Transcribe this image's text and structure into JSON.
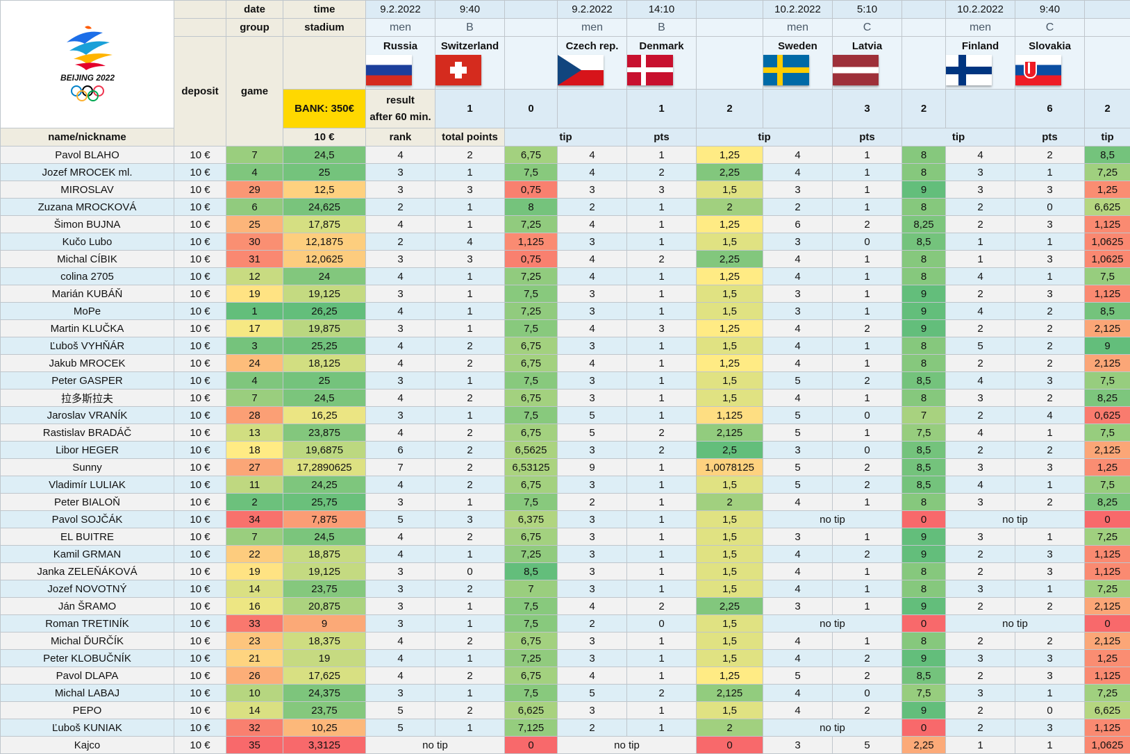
{
  "logo_text": "BEIJING 2022",
  "bank_label": "BANK: 350€",
  "labels": {
    "date": "date",
    "time": "time",
    "group": "group",
    "stadium": "stadium",
    "deposit": "deposit",
    "game": "game",
    "result_line1": "result",
    "result_line2": "after 60 min.",
    "name": "name/nickname",
    "deposit_value": "10 €",
    "rank": "rank",
    "total": "total points",
    "tip": "tip",
    "pts": "pts"
  },
  "games": [
    {
      "date": "9.2.2022",
      "time": "9:40",
      "group": "men",
      "stadium": "B",
      "home": "Russia",
      "away": "Switzerland",
      "home_flag": "russia-flag",
      "away_flag": "switzerland-flag",
      "home_score": "1",
      "away_score": "0"
    },
    {
      "date": "9.2.2022",
      "time": "14:10",
      "group": "men",
      "stadium": "B",
      "home": "Czech rep.",
      "away": "Denmark",
      "home_flag": "czech-flag",
      "away_flag": "denmark-flag",
      "home_score": "1",
      "away_score": "2"
    },
    {
      "date": "10.2.2022",
      "time": "5:10",
      "group": "men",
      "stadium": "C",
      "home": "Sweden",
      "away": "Latvia",
      "home_flag": "sweden-flag",
      "away_flag": "latvia-flag",
      "home_score": "3",
      "away_score": "2"
    },
    {
      "date": "10.2.2022",
      "time": "9:40",
      "group": "men",
      "stadium": "C",
      "home": "Finland",
      "away": "Slovakia",
      "home_flag": "finland-flag",
      "away_flag": "slovakia-flag",
      "home_score": "6",
      "away_score": "2"
    }
  ],
  "colors": {
    "bank": "#ffd800",
    "header_label": "#efece0",
    "header_blue": "#dcebf5",
    "row_odd": "#f2f2f2",
    "row_even": "#ddeef6",
    "best": "#63be7b",
    "mid": "#ffeb84",
    "worst": "#f8696b"
  },
  "players": [
    {
      "name": "Pavol BLAHO",
      "deposit": "10 €",
      "rank": "7",
      "total": "24,5",
      "g": [
        [
          "4",
          "2",
          "6,75"
        ],
        [
          "4",
          "1",
          "1,25"
        ],
        [
          "4",
          "1",
          "8"
        ],
        [
          "4",
          "2",
          "8,5"
        ]
      ]
    },
    {
      "name": "Jozef MROCEK ml.",
      "deposit": "10 €",
      "rank": "4",
      "total": "25",
      "g": [
        [
          "3",
          "1",
          "7,5"
        ],
        [
          "4",
          "2",
          "2,25"
        ],
        [
          "4",
          "1",
          "8"
        ],
        [
          "3",
          "1",
          "7,25"
        ]
      ]
    },
    {
      "name": "MIROSLAV",
      "deposit": "10 €",
      "rank": "29",
      "total": "12,5",
      "g": [
        [
          "3",
          "3",
          "0,75"
        ],
        [
          "3",
          "3",
          "1,5"
        ],
        [
          "3",
          "1",
          "9"
        ],
        [
          "3",
          "3",
          "1,25"
        ]
      ]
    },
    {
      "name": "Zuzana MROCKOVÁ",
      "deposit": "10 €",
      "rank": "6",
      "total": "24,625",
      "g": [
        [
          "2",
          "1",
          "8"
        ],
        [
          "2",
          "1",
          "2"
        ],
        [
          "2",
          "1",
          "8"
        ],
        [
          "2",
          "0",
          "6,625"
        ]
      ]
    },
    {
      "name": "Šimon BUJNA",
      "deposit": "10 €",
      "rank": "25",
      "total": "17,875",
      "g": [
        [
          "4",
          "1",
          "7,25"
        ],
        [
          "4",
          "1",
          "1,25"
        ],
        [
          "6",
          "2",
          "8,25"
        ],
        [
          "2",
          "3",
          "1,125"
        ]
      ]
    },
    {
      "name": "Kučo Lubo",
      "deposit": "10 €",
      "rank": "30",
      "total": "12,1875",
      "g": [
        [
          "2",
          "4",
          "1,125"
        ],
        [
          "3",
          "1",
          "1,5"
        ],
        [
          "3",
          "0",
          "8,5"
        ],
        [
          "1",
          "1",
          "1,0625"
        ]
      ]
    },
    {
      "name": "Michal CÍBIK",
      "deposit": "10 €",
      "rank": "31",
      "total": "12,0625",
      "g": [
        [
          "3",
          "3",
          "0,75"
        ],
        [
          "4",
          "2",
          "2,25"
        ],
        [
          "4",
          "1",
          "8"
        ],
        [
          "1",
          "3",
          "1,0625"
        ]
      ]
    },
    {
      "name": "colina 2705",
      "deposit": "10 €",
      "rank": "12",
      "total": "24",
      "g": [
        [
          "4",
          "1",
          "7,25"
        ],
        [
          "4",
          "1",
          "1,25"
        ],
        [
          "4",
          "1",
          "8"
        ],
        [
          "4",
          "1",
          "7,5"
        ]
      ]
    },
    {
      "name": "Marián KUBÁŇ",
      "deposit": "10 €",
      "rank": "19",
      "total": "19,125",
      "g": [
        [
          "3",
          "1",
          "7,5"
        ],
        [
          "3",
          "1",
          "1,5"
        ],
        [
          "3",
          "1",
          "9"
        ],
        [
          "2",
          "3",
          "1,125"
        ]
      ]
    },
    {
      "name": "MoPe",
      "deposit": "10 €",
      "rank": "1",
      "total": "26,25",
      "g": [
        [
          "4",
          "1",
          "7,25"
        ],
        [
          "3",
          "1",
          "1,5"
        ],
        [
          "3",
          "1",
          "9"
        ],
        [
          "4",
          "2",
          "8,5"
        ]
      ]
    },
    {
      "name": "Martin KLUČKA",
      "deposit": "10 €",
      "rank": "17",
      "total": "19,875",
      "g": [
        [
          "3",
          "1",
          "7,5"
        ],
        [
          "4",
          "3",
          "1,25"
        ],
        [
          "4",
          "2",
          "9"
        ],
        [
          "2",
          "2",
          "2,125"
        ]
      ]
    },
    {
      "name": "Ľuboš VYHŇÁR",
      "deposit": "10 €",
      "rank": "3",
      "total": "25,25",
      "g": [
        [
          "4",
          "2",
          "6,75"
        ],
        [
          "3",
          "1",
          "1,5"
        ],
        [
          "4",
          "1",
          "8"
        ],
        [
          "5",
          "2",
          "9"
        ]
      ]
    },
    {
      "name": "Jakub MROCEK",
      "deposit": "10 €",
      "rank": "24",
      "total": "18,125",
      "g": [
        [
          "4",
          "2",
          "6,75"
        ],
        [
          "4",
          "1",
          "1,25"
        ],
        [
          "4",
          "1",
          "8"
        ],
        [
          "2",
          "2",
          "2,125"
        ]
      ]
    },
    {
      "name": "Peter GASPER",
      "deposit": "10 €",
      "rank": "4",
      "total": "25",
      "g": [
        [
          "3",
          "1",
          "7,5"
        ],
        [
          "3",
          "1",
          "1,5"
        ],
        [
          "5",
          "2",
          "8,5"
        ],
        [
          "4",
          "3",
          "7,5"
        ]
      ]
    },
    {
      "name": "拉多斯拉夫",
      "deposit": "10 €",
      "rank": "7",
      "total": "24,5",
      "g": [
        [
          "4",
          "2",
          "6,75"
        ],
        [
          "3",
          "1",
          "1,5"
        ],
        [
          "4",
          "1",
          "8"
        ],
        [
          "3",
          "2",
          "8,25"
        ]
      ]
    },
    {
      "name": "Jaroslav VRANÍK",
      "deposit": "10 €",
      "rank": "28",
      "total": "16,25",
      "g": [
        [
          "3",
          "1",
          "7,5"
        ],
        [
          "5",
          "1",
          "1,125"
        ],
        [
          "5",
          "0",
          "7"
        ],
        [
          "2",
          "4",
          "0,625"
        ]
      ]
    },
    {
      "name": "Rastislav BRADÁČ",
      "deposit": "10 €",
      "rank": "13",
      "total": "23,875",
      "g": [
        [
          "4",
          "2",
          "6,75"
        ],
        [
          "5",
          "2",
          "2,125"
        ],
        [
          "5",
          "1",
          "7,5"
        ],
        [
          "4",
          "1",
          "7,5"
        ]
      ]
    },
    {
      "name": "Libor HEGER",
      "deposit": "10 €",
      "rank": "18",
      "total": "19,6875",
      "g": [
        [
          "6",
          "2",
          "6,5625"
        ],
        [
          "3",
          "2",
          "2,5"
        ],
        [
          "3",
          "0",
          "8,5"
        ],
        [
          "2",
          "2",
          "2,125"
        ]
      ]
    },
    {
      "name": "Sunny",
      "deposit": "10 €",
      "rank": "27",
      "total": "17,2890625",
      "g": [
        [
          "7",
          "2",
          "6,53125"
        ],
        [
          "9",
          "1",
          "1,0078125"
        ],
        [
          "5",
          "2",
          "8,5"
        ],
        [
          "3",
          "3",
          "1,25"
        ]
      ]
    },
    {
      "name": "Vladimír LULIAK",
      "deposit": "10 €",
      "rank": "11",
      "total": "24,25",
      "g": [
        [
          "4",
          "2",
          "6,75"
        ],
        [
          "3",
          "1",
          "1,5"
        ],
        [
          "5",
          "2",
          "8,5"
        ],
        [
          "4",
          "1",
          "7,5"
        ]
      ]
    },
    {
      "name": "Peter BIALOŇ",
      "deposit": "10 €",
      "rank": "2",
      "total": "25,75",
      "g": [
        [
          "3",
          "1",
          "7,5"
        ],
        [
          "2",
          "1",
          "2"
        ],
        [
          "4",
          "1",
          "8"
        ],
        [
          "3",
          "2",
          "8,25"
        ]
      ]
    },
    {
      "name": "Pavol SOJČÁK",
      "deposit": "10 €",
      "rank": "34",
      "total": "7,875",
      "g": [
        [
          "5",
          "3",
          "6,375"
        ],
        [
          "3",
          "1",
          "1,5"
        ],
        [
          "no tip",
          "",
          "0"
        ],
        [
          "no tip",
          "",
          "0"
        ]
      ]
    },
    {
      "name": "EL BUITRE",
      "deposit": "10 €",
      "rank": "7",
      "total": "24,5",
      "g": [
        [
          "4",
          "2",
          "6,75"
        ],
        [
          "3",
          "1",
          "1,5"
        ],
        [
          "3",
          "1",
          "9"
        ],
        [
          "3",
          "1",
          "7,25"
        ]
      ]
    },
    {
      "name": "Kamil GRMAN",
      "deposit": "10 €",
      "rank": "22",
      "total": "18,875",
      "g": [
        [
          "4",
          "1",
          "7,25"
        ],
        [
          "3",
          "1",
          "1,5"
        ],
        [
          "4",
          "2",
          "9"
        ],
        [
          "2",
          "3",
          "1,125"
        ]
      ]
    },
    {
      "name": "Janka ZELEŇÁKOVÁ",
      "deposit": "10 €",
      "rank": "19",
      "total": "19,125",
      "g": [
        [
          "3",
          "0",
          "8,5"
        ],
        [
          "3",
          "1",
          "1,5"
        ],
        [
          "4",
          "1",
          "8"
        ],
        [
          "2",
          "3",
          "1,125"
        ]
      ]
    },
    {
      "name": "Jozef NOVOTNÝ",
      "deposit": "10 €",
      "rank": "14",
      "total": "23,75",
      "g": [
        [
          "3",
          "2",
          "7"
        ],
        [
          "3",
          "1",
          "1,5"
        ],
        [
          "4",
          "1",
          "8"
        ],
        [
          "3",
          "1",
          "7,25"
        ]
      ]
    },
    {
      "name": "Ján ŠRAMO",
      "deposit": "10 €",
      "rank": "16",
      "total": "20,875",
      "g": [
        [
          "3",
          "1",
          "7,5"
        ],
        [
          "4",
          "2",
          "2,25"
        ],
        [
          "3",
          "1",
          "9"
        ],
        [
          "2",
          "2",
          "2,125"
        ]
      ]
    },
    {
      "name": "Roman TRETINÍK",
      "deposit": "10 €",
      "rank": "33",
      "total": "9",
      "g": [
        [
          "3",
          "1",
          "7,5"
        ],
        [
          "2",
          "0",
          "1,5"
        ],
        [
          "no tip",
          "",
          "0"
        ],
        [
          "no tip",
          "",
          "0"
        ]
      ]
    },
    {
      "name": "Michal ĎURČÍK",
      "deposit": "10 €",
      "rank": "23",
      "total": "18,375",
      "g": [
        [
          "4",
          "2",
          "6,75"
        ],
        [
          "3",
          "1",
          "1,5"
        ],
        [
          "4",
          "1",
          "8"
        ],
        [
          "2",
          "2",
          "2,125"
        ]
      ]
    },
    {
      "name": "Peter KLOBUČNÍK",
      "deposit": "10 €",
      "rank": "21",
      "total": "19",
      "g": [
        [
          "4",
          "1",
          "7,25"
        ],
        [
          "3",
          "1",
          "1,5"
        ],
        [
          "4",
          "2",
          "9"
        ],
        [
          "3",
          "3",
          "1,25"
        ]
      ]
    },
    {
      "name": "Pavol DLAPA",
      "deposit": "10 €",
      "rank": "26",
      "total": "17,625",
      "g": [
        [
          "4",
          "2",
          "6,75"
        ],
        [
          "4",
          "1",
          "1,25"
        ],
        [
          "5",
          "2",
          "8,5"
        ],
        [
          "2",
          "3",
          "1,125"
        ]
      ]
    },
    {
      "name": "Michal LABAJ",
      "deposit": "10 €",
      "rank": "10",
      "total": "24,375",
      "g": [
        [
          "3",
          "1",
          "7,5"
        ],
        [
          "5",
          "2",
          "2,125"
        ],
        [
          "4",
          "0",
          "7,5"
        ],
        [
          "3",
          "1",
          "7,25"
        ]
      ]
    },
    {
      "name": "PEPO",
      "deposit": "10 €",
      "rank": "14",
      "total": "23,75",
      "g": [
        [
          "5",
          "2",
          "6,625"
        ],
        [
          "3",
          "1",
          "1,5"
        ],
        [
          "4",
          "2",
          "9"
        ],
        [
          "2",
          "0",
          "6,625"
        ]
      ]
    },
    {
      "name": "Ľuboš KUNIAK",
      "deposit": "10 €",
      "rank": "32",
      "total": "10,25",
      "g": [
        [
          "5",
          "1",
          "7,125"
        ],
        [
          "2",
          "1",
          "2"
        ],
        [
          "no tip",
          "",
          "0"
        ],
        [
          "2",
          "3",
          "1,125"
        ]
      ]
    },
    {
      "name": "Kajco",
      "deposit": "10 €",
      "rank": "35",
      "total": "3,3125",
      "g": [
        [
          "no tip",
          "",
          "0"
        ],
        [
          "no tip",
          "",
          "0"
        ],
        [
          "3",
          "5",
          "2,25"
        ],
        [
          "1",
          "1",
          "1,0625"
        ]
      ]
    }
  ]
}
